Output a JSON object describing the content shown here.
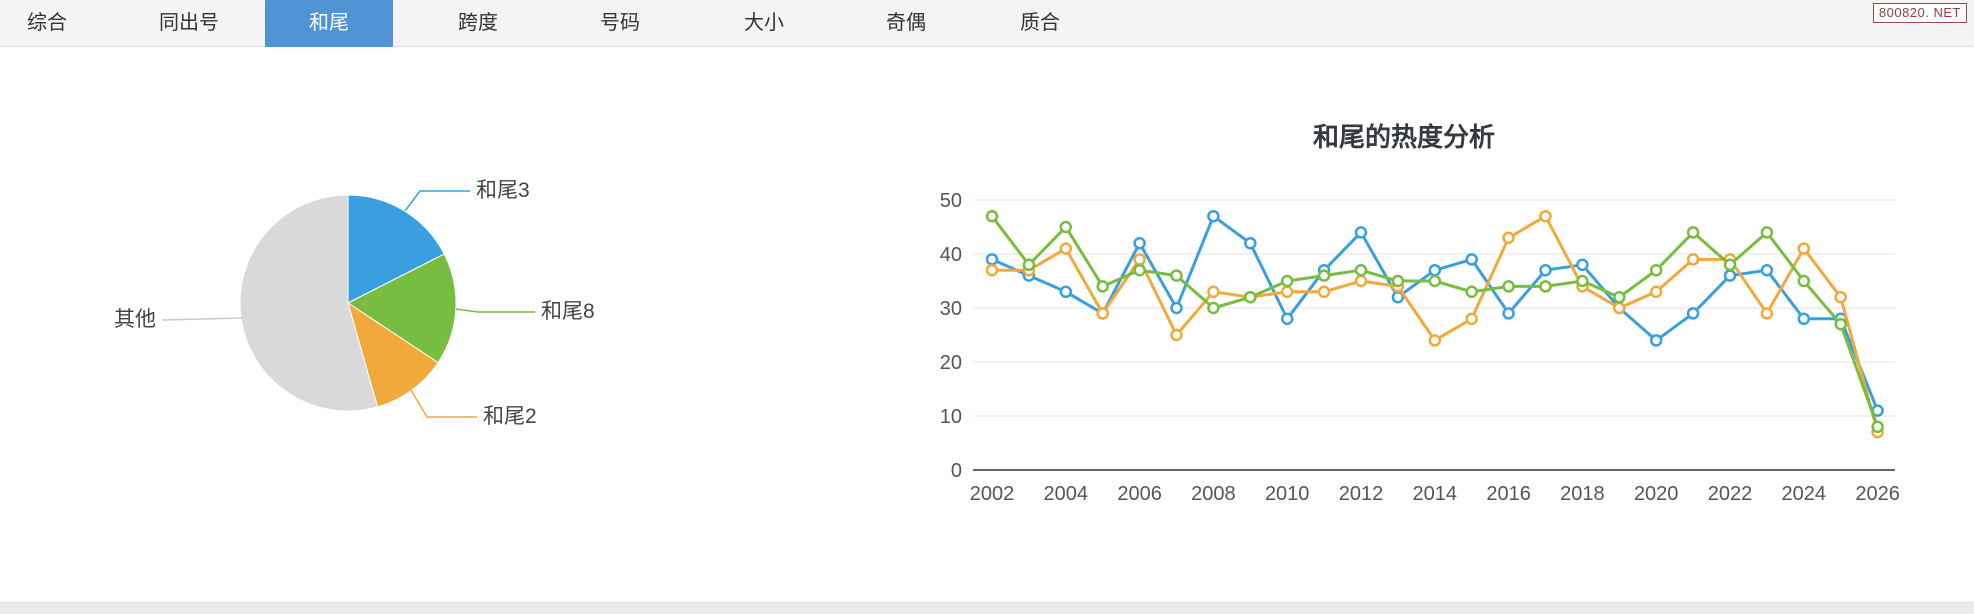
{
  "tab_bar": {
    "active_bg": "#5094d5",
    "items": [
      {
        "label": "综合",
        "active": false
      },
      {
        "label": "同出号",
        "active": false
      },
      {
        "label": "和尾",
        "active": true
      },
      {
        "label": "跨度",
        "active": false
      },
      {
        "label": "号码",
        "active": false
      },
      {
        "label": "大小",
        "active": false
      },
      {
        "label": "奇偶",
        "active": false
      },
      {
        "label": "质合",
        "active": false
      }
    ]
  },
  "watermark": {
    "text": "800820. NET",
    "color": "#943c44"
  },
  "chart_data": [
    {
      "type": "pie",
      "labels": [
        "和尾3",
        "和尾8",
        "和尾2",
        "其他"
      ],
      "values": [
        17.5,
        16.8,
        11.3,
        54.4
      ],
      "unit": "%",
      "colors": [
        "#3a9fde",
        "#76bd40",
        "#f2a93b",
        "#d9d9d9"
      ],
      "leader_colors": [
        "#3a9fde",
        "#76bd40",
        "#f2a93b",
        "#c9c9c9"
      ],
      "start_angle": "12 o'clock, clockwise",
      "legend_position": "outside-labels"
    },
    {
      "type": "line",
      "title": "和尾的热度分析",
      "x": [
        2002,
        2003,
        2004,
        2005,
        2006,
        2007,
        2008,
        2009,
        2010,
        2011,
        2012,
        2013,
        2014,
        2015,
        2016,
        2017,
        2018,
        2019,
        2020,
        2021,
        2022,
        2023,
        2024,
        2025,
        2026
      ],
      "xticks": [
        2002,
        2004,
        2006,
        2008,
        2010,
        2012,
        2014,
        2016,
        2018,
        2020,
        2022,
        2024,
        2026
      ],
      "yticks": [
        0,
        10,
        20,
        30,
        40,
        50
      ],
      "ylim": [
        0,
        50
      ],
      "grid": "horizontal",
      "legend": "none",
      "series": [
        {
          "name": "和尾3",
          "color": "#3a9fde",
          "values": [
            39,
            36,
            33,
            29,
            42,
            30,
            47,
            42,
            28,
            37,
            44,
            32,
            37,
            39,
            29,
            37,
            38,
            30,
            24,
            29,
            36,
            37,
            28,
            28,
            11
          ]
        },
        {
          "name": "和尾2",
          "color": "#f2a93b",
          "values": [
            37,
            37,
            41,
            29,
            39,
            25,
            33,
            32,
            33,
            33,
            35,
            34,
            24,
            28,
            43,
            47,
            34,
            30,
            33,
            39,
            39,
            29,
            41,
            32,
            7
          ]
        },
        {
          "name": "和尾8",
          "color": "#76bd40",
          "values": [
            47,
            38,
            45,
            34,
            37,
            36,
            30,
            32,
            35,
            36,
            37,
            35,
            35,
            33,
            34,
            34,
            35,
            32,
            37,
            44,
            38,
            44,
            35,
            27,
            8
          ]
        }
      ]
    }
  ]
}
